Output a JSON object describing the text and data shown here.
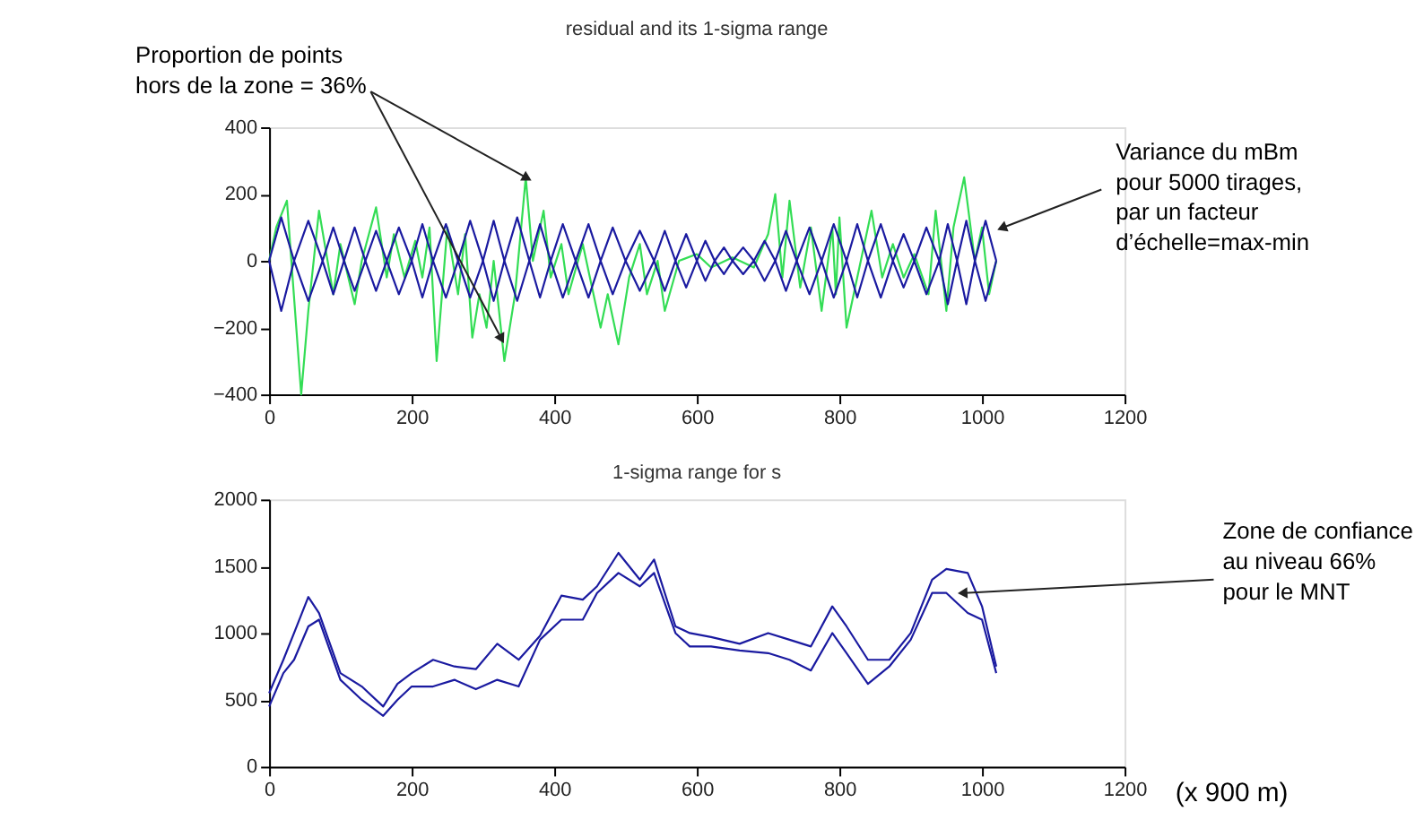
{
  "chart_data": [
    {
      "type": "line",
      "title": "residual and its 1-sigma range",
      "xlim": [
        0,
        1200
      ],
      "xticks": [
        0,
        200,
        400,
        600,
        800,
        1000,
        1200
      ],
      "ylim": [
        -400,
        400
      ],
      "yticks": [
        -400,
        -200,
        0,
        200,
        400
      ],
      "grid": false,
      "line_style": "solid",
      "marker": "none",
      "annotations": [
        {
          "text": "Proportion de points\nhors de la zone = 36%",
          "x": 360,
          "y": 250
        },
        {
          "text": "Variance du mBm\npour 5000 tirages,\npar un facteur\nd’échelle=max-min",
          "x": 1030,
          "y": 100
        }
      ],
      "series": [
        {
          "color": "#33dd55",
          "x": [
            0,
            10,
            25,
            45,
            55,
            70,
            90,
            100,
            120,
            130,
            150,
            165,
            175,
            190,
            205,
            215,
            225,
            235,
            250,
            265,
            275,
            285,
            295,
            305,
            315,
            330,
            345,
            360,
            370,
            385,
            395,
            410,
            420,
            440,
            465,
            475,
            490,
            505,
            520,
            530,
            545,
            555,
            575,
            600,
            620,
            650,
            680,
            700,
            710,
            720,
            730,
            745,
            760,
            775,
            790,
            795,
            800,
            810,
            830,
            845,
            860,
            875,
            890,
            905,
            925,
            935,
            950,
            960,
            975,
            990,
            1000,
            1010,
            1020
          ],
          "values": [
            0,
            100,
            180,
            -400,
            -150,
            150,
            -100,
            50,
            -130,
            0,
            160,
            -50,
            80,
            -50,
            60,
            -50,
            100,
            -300,
            100,
            -100,
            80,
            -230,
            -100,
            -200,
            0,
            -300,
            -100,
            250,
            0,
            150,
            -50,
            50,
            -100,
            50,
            -200,
            -100,
            -250,
            -50,
            50,
            -100,
            0,
            -150,
            0,
            20,
            -20,
            10,
            -20,
            80,
            200,
            -50,
            180,
            -80,
            100,
            -150,
            100,
            -100,
            130,
            -200,
            0,
            150,
            -50,
            50,
            -50,
            20,
            -100,
            150,
            -150,
            100,
            250,
            0,
            100,
            -100,
            0
          ]
        },
        {
          "color": "#1a1aa0",
          "x": [
            0,
            17,
            35,
            55,
            75,
            90,
            105,
            120,
            135,
            150,
            165,
            182,
            200,
            215,
            230,
            248,
            265,
            282,
            300,
            315,
            330,
            348,
            365,
            380,
            395,
            412,
            430,
            448,
            465,
            482,
            500,
            520,
            540,
            555,
            570,
            585,
            600,
            612,
            625,
            638,
            650,
            665,
            680,
            695,
            710,
            725,
            740,
            758,
            775,
            792,
            810,
            825,
            840,
            858,
            875,
            890,
            905,
            922,
            940,
            952,
            965,
            978,
            990,
            1005,
            1020
          ],
          "values": [
            0,
            130,
            0,
            120,
            0,
            100,
            0,
            100,
            0,
            90,
            0,
            100,
            0,
            110,
            0,
            110,
            0,
            120,
            0,
            120,
            0,
            130,
            0,
            110,
            0,
            110,
            0,
            110,
            0,
            100,
            0,
            90,
            0,
            90,
            0,
            80,
            0,
            60,
            0,
            40,
            0,
            40,
            0,
            60,
            0,
            90,
            0,
            100,
            0,
            110,
            0,
            110,
            0,
            110,
            0,
            80,
            0,
            100,
            0,
            110,
            0,
            120,
            0,
            120,
            0
          ]
        },
        {
          "color": "#1a1aa0",
          "x": [
            0,
            17,
            35,
            55,
            75,
            90,
            105,
            120,
            135,
            150,
            165,
            182,
            200,
            215,
            230,
            248,
            265,
            282,
            300,
            315,
            330,
            348,
            365,
            380,
            395,
            412,
            430,
            448,
            465,
            482,
            500,
            520,
            540,
            555,
            570,
            585,
            600,
            612,
            625,
            638,
            650,
            665,
            680,
            695,
            710,
            725,
            740,
            758,
            775,
            792,
            810,
            825,
            840,
            858,
            875,
            890,
            905,
            922,
            940,
            952,
            965,
            978,
            990,
            1005,
            1020
          ],
          "values": [
            0,
            -150,
            0,
            -120,
            0,
            -100,
            0,
            -90,
            0,
            -90,
            0,
            -100,
            0,
            -110,
            0,
            -110,
            0,
            -110,
            0,
            -120,
            0,
            -120,
            0,
            -110,
            0,
            -110,
            0,
            -110,
            0,
            -100,
            0,
            -90,
            0,
            -90,
            0,
            -80,
            0,
            -60,
            0,
            -40,
            0,
            -40,
            0,
            -60,
            0,
            -90,
            0,
            -100,
            0,
            -110,
            0,
            -110,
            0,
            -110,
            0,
            -80,
            0,
            -100,
            0,
            -130,
            0,
            -130,
            0,
            -120,
            0
          ]
        }
      ]
    },
    {
      "type": "line",
      "title": "1-sigma range for s",
      "xlabel": "(x 900 m)",
      "xlim": [
        0,
        1200
      ],
      "xticks": [
        0,
        200,
        400,
        600,
        800,
        1000,
        1200
      ],
      "ylim": [
        0,
        2000
      ],
      "yticks": [
        0,
        500,
        1000,
        1500,
        2000
      ],
      "grid": false,
      "line_style": "solid",
      "marker": "none",
      "annotations": [
        {
          "text": "Zone de confiance\n au niveau 66%\npour le MNT",
          "x": 975,
          "y": 1300
        }
      ],
      "series": [
        {
          "color": "#1a1aa0",
          "x": [
            0,
            20,
            35,
            55,
            70,
            100,
            130,
            160,
            180,
            200,
            230,
            260,
            290,
            320,
            350,
            380,
            410,
            440,
            460,
            490,
            520,
            540,
            570,
            590,
            620,
            660,
            700,
            730,
            760,
            790,
            810,
            840,
            870,
            900,
            930,
            950,
            980,
            1000,
            1020
          ],
          "values": [
            550,
            800,
            1000,
            1270,
            1150,
            700,
            600,
            450,
            620,
            700,
            800,
            750,
            730,
            920,
            800,
            980,
            1280,
            1250,
            1350,
            1600,
            1400,
            1550,
            1050,
            1000,
            970,
            920,
            1000,
            950,
            900,
            1200,
            1050,
            800,
            800,
            1000,
            1400,
            1480,
            1450,
            1200,
            750
          ]
        },
        {
          "color": "#1a1aa0",
          "x": [
            0,
            20,
            35,
            55,
            70,
            100,
            130,
            160,
            180,
            200,
            230,
            260,
            290,
            320,
            350,
            380,
            410,
            440,
            460,
            490,
            520,
            540,
            570,
            590,
            620,
            660,
            700,
            730,
            760,
            790,
            810,
            840,
            870,
            900,
            930,
            950,
            980,
            1000,
            1020
          ],
          "values": [
            450,
            700,
            800,
            1050,
            1100,
            650,
            500,
            380,
            500,
            600,
            600,
            650,
            580,
            650,
            600,
            950,
            1100,
            1100,
            1300,
            1450,
            1350,
            1450,
            1000,
            900,
            900,
            870,
            850,
            800,
            720,
            1000,
            850,
            620,
            750,
            950,
            1300,
            1300,
            1150,
            1100,
            700
          ]
        }
      ]
    }
  ]
}
